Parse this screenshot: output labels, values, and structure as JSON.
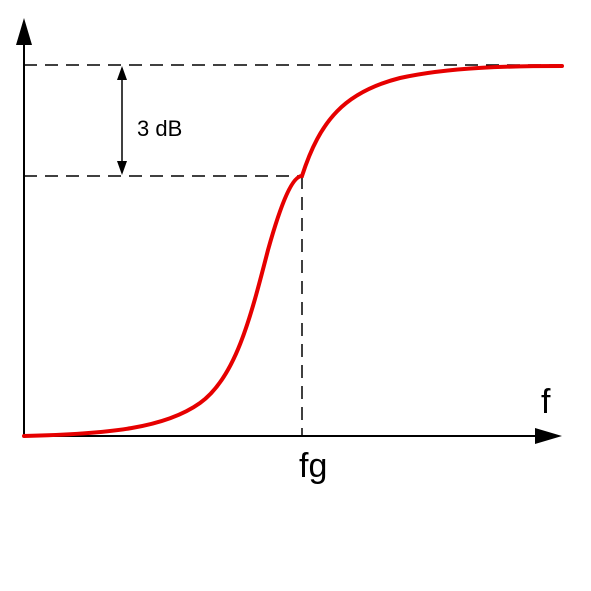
{
  "labels": {
    "attenuation": "3 dB",
    "x_axis": "f",
    "cutoff": "fg"
  },
  "colors": {
    "curve": "#e60000",
    "axes": "#000000",
    "guides": "#000000",
    "background": "#ffffff"
  }
}
